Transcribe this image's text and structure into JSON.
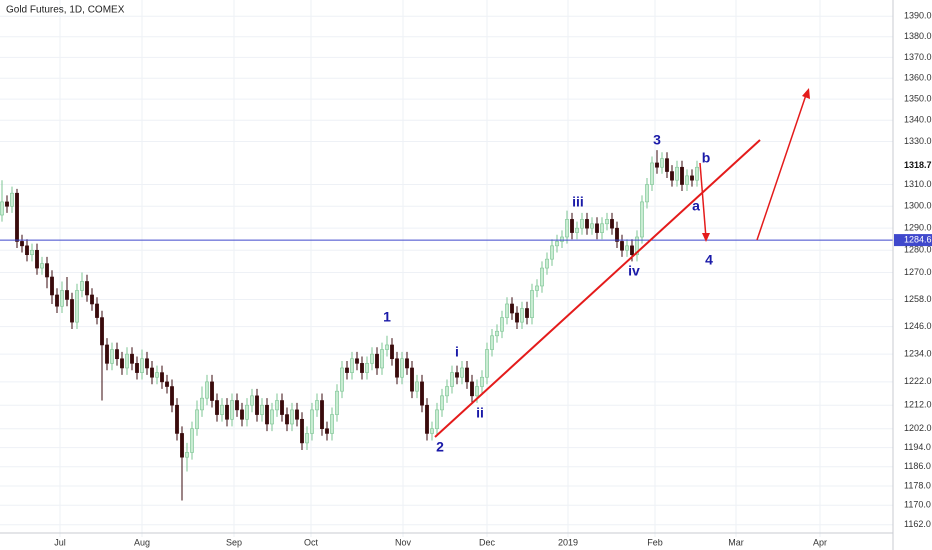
{
  "chart_data": {
    "type": "candlestick",
    "title": "Gold Futures, 1D, COMEX",
    "log_scale": true,
    "grid": true,
    "up_color": "#c9ecd2",
    "down_color": "#3a0a0c",
    "xlim": [
      -0.4,
      178.2
    ],
    "xticks": [
      {
        "value": 11.6,
        "label": "Jul"
      },
      {
        "value": 28,
        "label": "Aug"
      },
      {
        "value": 46.4,
        "label": "Sep"
      },
      {
        "value": 61.8,
        "label": "Oct"
      },
      {
        "value": 80.2,
        "label": "Nov"
      },
      {
        "value": 97,
        "label": "Dec"
      },
      {
        "value": 113.2,
        "label": "2019"
      },
      {
        "value": 130.6,
        "label": "Feb"
      },
      {
        "value": 146.8,
        "label": "Mar"
      },
      {
        "value": 163.6,
        "label": "Apr"
      }
    ],
    "ylim": [
      1157,
      1398
    ],
    "yticks": [
      {
        "value": 1390,
        "label": "1390.0"
      },
      {
        "value": 1380,
        "label": "1380.0"
      },
      {
        "value": 1370,
        "label": "1370.0"
      },
      {
        "value": 1360,
        "label": "1360.0"
      },
      {
        "value": 1350,
        "label": "1350.0"
      },
      {
        "value": 1340,
        "label": "1340.0"
      },
      {
        "value": 1330,
        "label": "1330.0"
      },
      {
        "value": 1310,
        "label": "1310.0"
      },
      {
        "value": 1300,
        "label": "1300.0"
      },
      {
        "value": 1290,
        "label": "1290.0"
      },
      {
        "value": 1280,
        "label": "1280.0"
      },
      {
        "value": 1270,
        "label": "1270.0"
      },
      {
        "value": 1258,
        "label": "1258.0"
      },
      {
        "value": 1246,
        "label": "1246.0"
      },
      {
        "value": 1234,
        "label": "1234.0"
      },
      {
        "value": 1222,
        "label": "1222.0"
      },
      {
        "value": 1212,
        "label": "1212.0"
      },
      {
        "value": 1202,
        "label": "1202.0"
      },
      {
        "value": 1194,
        "label": "1194.0"
      },
      {
        "value": 1186,
        "label": "1186.0"
      },
      {
        "value": 1178,
        "label": "1178.0"
      },
      {
        "value": 1170,
        "label": "1170.0"
      },
      {
        "value": 1162,
        "label": "1162.0"
      }
    ],
    "last_price": 1318.7,
    "price_line": {
      "value": 1284.6,
      "color": "#3f48cc"
    },
    "annotations": [
      "1",
      "i",
      "ii",
      "2",
      "iii",
      "iv",
      "3",
      "b",
      "a",
      "4"
    ],
    "open": [
      1296,
      1302,
      1300,
      1306,
      1284,
      1282,
      1278,
      1280,
      1272,
      1274,
      1268,
      1260,
      1255,
      1262,
      1258,
      1248,
      1262,
      1266,
      1260,
      1256,
      1250,
      1238,
      1230,
      1236,
      1232,
      1228,
      1234,
      1230,
      1226,
      1232,
      1228,
      1224,
      1226,
      1222,
      1220,
      1212,
      1200,
      1190,
      1192,
      1202,
      1210,
      1215,
      1222,
      1214,
      1208,
      1212,
      1206,
      1214,
      1210,
      1206,
      1212,
      1216,
      1208,
      1212,
      1204,
      1210,
      1214,
      1208,
      1204,
      1210,
      1206,
      1196,
      1200,
      1210,
      1214,
      1202,
      1200,
      1208,
      1218,
      1228,
      1226,
      1232,
      1230,
      1226,
      1230,
      1234,
      1228,
      1236,
      1238,
      1232,
      1224,
      1232,
      1228,
      1218,
      1222,
      1212,
      1200,
      1202,
      1210,
      1216,
      1220,
      1226,
      1224,
      1228,
      1222,
      1216,
      1220,
      1224,
      1236,
      1242,
      1244,
      1250,
      1256,
      1252,
      1248,
      1254,
      1250,
      1262,
      1264,
      1272,
      1276,
      1282,
      1284,
      1286,
      1294,
      1288,
      1290,
      1294,
      1290,
      1292,
      1288,
      1292,
      1294,
      1290,
      1284,
      1280,
      1282,
      1278,
      1286,
      1302,
      1310,
      1320,
      1318,
      1322,
      1316,
      1312,
      1318,
      1310,
      1314,
      1312
    ],
    "high": [
      1312,
      1305,
      1309,
      1308,
      1287,
      1285,
      1283,
      1283,
      1277,
      1277,
      1271,
      1263,
      1266,
      1268,
      1261,
      1265,
      1270,
      1269,
      1263,
      1259,
      1253,
      1241,
      1239,
      1239,
      1235,
      1237,
      1237,
      1233,
      1236,
      1235,
      1231,
      1229,
      1229,
      1225,
      1223,
      1215,
      1203,
      1196,
      1205,
      1214,
      1220,
      1225,
      1225,
      1217,
      1215,
      1215,
      1217,
      1217,
      1213,
      1215,
      1219,
      1219,
      1215,
      1215,
      1213,
      1217,
      1217,
      1211,
      1213,
      1213,
      1209,
      1203,
      1213,
      1217,
      1217,
      1205,
      1211,
      1221,
      1231,
      1231,
      1235,
      1235,
      1233,
      1233,
      1237,
      1237,
      1239,
      1242,
      1241,
      1235,
      1235,
      1235,
      1231,
      1225,
      1225,
      1215,
      1205,
      1213,
      1219,
      1223,
      1229,
      1229,
      1231,
      1231,
      1225,
      1223,
      1227,
      1239,
      1245,
      1247,
      1253,
      1259,
      1259,
      1255,
      1257,
      1257,
      1265,
      1267,
      1275,
      1279,
      1285,
      1287,
      1289,
      1298,
      1297,
      1293,
      1297,
      1297,
      1295,
      1295,
      1295,
      1297,
      1297,
      1293,
      1287,
      1285,
      1285,
      1289,
      1305,
      1313,
      1323,
      1326,
      1325,
      1325,
      1319,
      1321,
      1321,
      1317,
      1317,
      1321
    ],
    "low": [
      1293,
      1297,
      1297,
      1281,
      1279,
      1275,
      1275,
      1269,
      1269,
      1263,
      1256,
      1252,
      1252,
      1255,
      1245,
      1245,
      1259,
      1257,
      1253,
      1247,
      1214,
      1227,
      1227,
      1229,
      1225,
      1225,
      1227,
      1223,
      1223,
      1225,
      1221,
      1221,
      1219,
      1217,
      1209,
      1197,
      1172,
      1184,
      1189,
      1199,
      1207,
      1212,
      1211,
      1205,
      1205,
      1203,
      1203,
      1207,
      1203,
      1203,
      1209,
      1205,
      1205,
      1201,
      1201,
      1207,
      1205,
      1201,
      1201,
      1203,
      1193,
      1193,
      1197,
      1207,
      1199,
      1197,
      1197,
      1205,
      1215,
      1223,
      1223,
      1227,
      1223,
      1223,
      1227,
      1225,
      1225,
      1233,
      1229,
      1221,
      1221,
      1225,
      1215,
      1215,
      1209,
      1197,
      1197,
      1199,
      1207,
      1213,
      1217,
      1221,
      1221,
      1219,
      1213,
      1213,
      1217,
      1221,
      1233,
      1239,
      1241,
      1247,
      1249,
      1245,
      1245,
      1247,
      1247,
      1259,
      1261,
      1269,
      1273,
      1279,
      1281,
      1283,
      1285,
      1285,
      1287,
      1287,
      1287,
      1285,
      1285,
      1289,
      1287,
      1281,
      1277,
      1277,
      1275,
      1275,
      1283,
      1299,
      1307,
      1315,
      1315,
      1313,
      1309,
      1309,
      1307,
      1307,
      1309,
      1309
    ],
    "close": [
      1302,
      1300,
      1306,
      1284,
      1282,
      1278,
      1280,
      1272,
      1274,
      1268,
      1260,
      1255,
      1262,
      1258,
      1248,
      1262,
      1266,
      1260,
      1256,
      1250,
      1238,
      1230,
      1236,
      1232,
      1228,
      1234,
      1230,
      1226,
      1232,
      1228,
      1224,
      1226,
      1222,
      1220,
      1212,
      1200,
      1190,
      1192,
      1202,
      1210,
      1215,
      1222,
      1214,
      1208,
      1212,
      1206,
      1214,
      1210,
      1206,
      1212,
      1216,
      1208,
      1212,
      1204,
      1210,
      1214,
      1208,
      1204,
      1210,
      1206,
      1196,
      1200,
      1210,
      1214,
      1202,
      1200,
      1208,
      1218,
      1228,
      1226,
      1232,
      1230,
      1226,
      1230,
      1234,
      1228,
      1236,
      1238,
      1232,
      1224,
      1232,
      1228,
      1218,
      1222,
      1212,
      1200,
      1202,
      1210,
      1216,
      1220,
      1226,
      1224,
      1228,
      1222,
      1216,
      1220,
      1224,
      1236,
      1242,
      1244,
      1250,
      1256,
      1252,
      1248,
      1254,
      1250,
      1262,
      1264,
      1272,
      1276,
      1282,
      1284,
      1286,
      1294,
      1288,
      1290,
      1294,
      1290,
      1292,
      1288,
      1292,
      1294,
      1290,
      1284,
      1280,
      1282,
      1278,
      1286,
      1302,
      1310,
      1320,
      1318,
      1322,
      1316,
      1312,
      1318,
      1310,
      1314,
      1312,
      1318
    ]
  }
}
